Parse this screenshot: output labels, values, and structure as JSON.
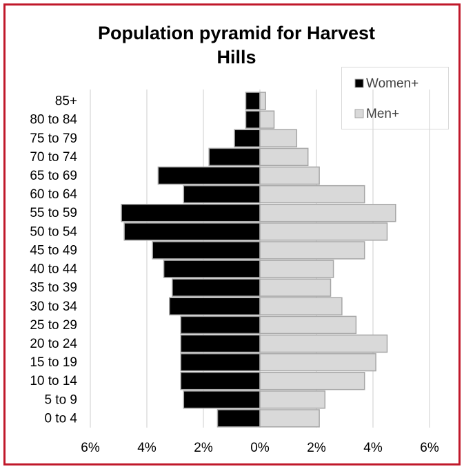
{
  "chart_data": {
    "type": "pyramid",
    "title": "Population pyramid for Harvest Hills",
    "categories": [
      "85+",
      "80 to 84",
      "75 to 79",
      "70 to 74",
      "65 to 69",
      "60 to 64",
      "55 to 59",
      "50 to 54",
      "45 to 49",
      "40 to 44",
      "35 to 39",
      "30 to 34",
      "25 to 29",
      "20 to 24",
      "15 to 19",
      "10 to 14",
      "5 to 9",
      "0 to 4"
    ],
    "series": [
      {
        "name": "Women+",
        "color": "#000000",
        "values": [
          -0.5,
          -0.5,
          -0.9,
          -1.8,
          -3.6,
          -2.7,
          -4.9,
          -4.8,
          -3.8,
          -3.4,
          -3.1,
          -3.2,
          -2.8,
          -2.8,
          -2.8,
          -2.8,
          -2.7,
          -1.5
        ]
      },
      {
        "name": "Men+",
        "color": "#d9d9d9",
        "values": [
          0.2,
          0.5,
          1.3,
          1.7,
          2.1,
          3.7,
          4.8,
          4.5,
          3.7,
          2.6,
          2.5,
          2.9,
          3.4,
          4.5,
          4.1,
          3.7,
          2.3,
          2.1
        ]
      }
    ],
    "xlim": [
      -6,
      6
    ],
    "xticks": [
      {
        "value": -6,
        "label": "6%"
      },
      {
        "value": -4,
        "label": "4%"
      },
      {
        "value": -2,
        "label": "2%"
      },
      {
        "value": 0,
        "label": "0%"
      },
      {
        "value": 2,
        "label": "2%"
      },
      {
        "value": 4,
        "label": "4%"
      },
      {
        "value": 6,
        "label": "6%"
      }
    ],
    "grid": true,
    "legend": "top-right"
  }
}
